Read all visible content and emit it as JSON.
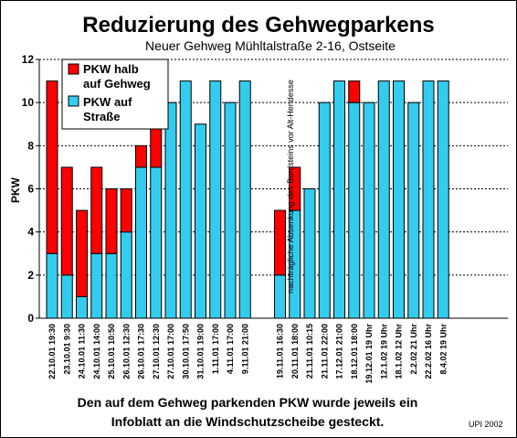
{
  "chart_data": {
    "type": "bar",
    "stacked": true,
    "title": "Reduzierung des Gehwegparkens",
    "subtitle": "Neuer Gehweg Mühltalstraße 2-16, Ostseite",
    "ylabel": "PKW",
    "xlabel": "",
    "ylim": [
      0,
      12
    ],
    "yticks": [
      0,
      2,
      4,
      6,
      8,
      10,
      12
    ],
    "grid": "horizontal dashed",
    "legend_position": "top-left",
    "categories": [
      "22.10.01 19:30",
      "23.10.01 9:30",
      "24.10.01 11:30",
      "24.10.01 14:00",
      "25.10.01 10:50",
      "26.10.01 12:30",
      "26.10.01 17:30",
      "27.10.01 12:30",
      "27.10.01 17:00",
      "30.10.01 17:50",
      "31.10.01 19:00",
      "1.11.01 17:00",
      "4.11.01 17:00",
      "9.11.01 21:00",
      "19.11.01 16:30",
      "20.11.01 18:00",
      "21.11.01 10:15",
      "21.11.01 22:00",
      "17.12.01 21:00",
      "18.12.01 18:00",
      "19.12.01 19 Uhr",
      "12.1.02 19 Uhr",
      "18.1.02 12 Uhr",
      "2.2.02 21 Uhr",
      "22.2.02 16 Uhr",
      "8.4.02 19 Uhr"
    ],
    "series": [
      {
        "name": "PKW auf Straße",
        "color": "#33ccee",
        "values": [
          3,
          2,
          1,
          3,
          3,
          4,
          7,
          7,
          10,
          11,
          9,
          11,
          10,
          11,
          2,
          5,
          6,
          10,
          11,
          10,
          10,
          11,
          11,
          10,
          11,
          11
        ]
      },
      {
        "name": "PKW halb auf Gehweg",
        "color": "#ff0000",
        "values": [
          8,
          5,
          4,
          4,
          3,
          2,
          1,
          3,
          0,
          0,
          0,
          0,
          0,
          0,
          3,
          2,
          0,
          0,
          0,
          1,
          0,
          0,
          0,
          0,
          0,
          0
        ]
      }
    ],
    "annotation": "nachträgliche Absenkung des Bordsteins vor Alt-Hendesse",
    "annotation_after_category": 13
  },
  "legend": {
    "items": [
      {
        "label_line1": "PKW halb",
        "label_line2": "auf Gehweg",
        "color": "#ff0000"
      },
      {
        "label_line1": "PKW auf",
        "label_line2": "Straße",
        "color": "#33ccee"
      }
    ]
  },
  "footnote": {
    "line1": "Den auf dem Gehweg parkenden PKW wurde jeweils ein",
    "line2": "Infoblatt an die Windschutzscheibe gesteckt."
  },
  "credit": "UPI 2002"
}
